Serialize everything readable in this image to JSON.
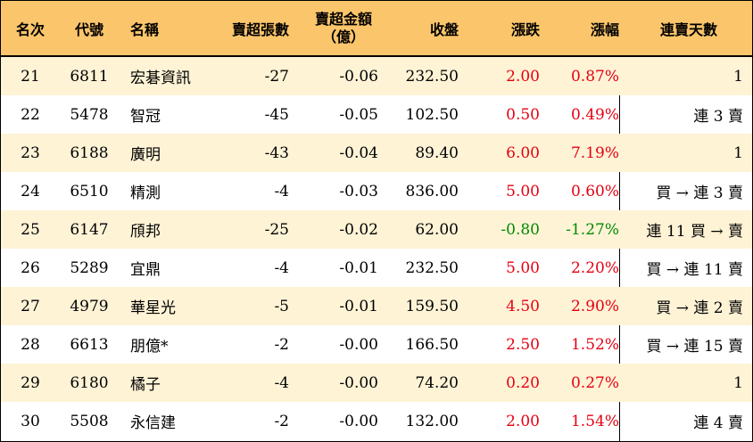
{
  "header": {
    "rank": "名次",
    "code": "代號",
    "name": "名稱",
    "net_sell_shares": "賣超張數",
    "net_sell_amount_line1": "賣超金額",
    "net_sell_amount_line2": "（億）",
    "close": "收盤",
    "change": "漲跌",
    "change_pct": "漲幅",
    "consecutive_days": "連賣天數"
  },
  "colors": {
    "header_bg": "#fbc56b",
    "stripe_bg": "#fff3d6",
    "up": "#e60012",
    "down": "#008a00"
  },
  "rows": [
    {
      "rank": "21",
      "code": "6811",
      "name": "宏碁資訊",
      "shares": "-27",
      "amount": "-0.06",
      "close": "232.50",
      "change": "2.00",
      "pct": "0.87%",
      "days": "1",
      "dir": "up"
    },
    {
      "rank": "22",
      "code": "5478",
      "name": "智冠",
      "shares": "-45",
      "amount": "-0.05",
      "close": "102.50",
      "change": "0.50",
      "pct": "0.49%",
      "days": "連 3 賣",
      "dir": "up"
    },
    {
      "rank": "23",
      "code": "6188",
      "name": "廣明",
      "shares": "-43",
      "amount": "-0.04",
      "close": "89.40",
      "change": "6.00",
      "pct": "7.19%",
      "days": "1",
      "dir": "up"
    },
    {
      "rank": "24",
      "code": "6510",
      "name": "精測",
      "shares": "-4",
      "amount": "-0.03",
      "close": "836.00",
      "change": "5.00",
      "pct": "0.60%",
      "days": "買 → 連 3 賣",
      "dir": "up"
    },
    {
      "rank": "25",
      "code": "6147",
      "name": "頎邦",
      "shares": "-25",
      "amount": "-0.02",
      "close": "62.00",
      "change": "-0.80",
      "pct": "-1.27%",
      "days": "連 11 買 → 賣",
      "dir": "down"
    },
    {
      "rank": "26",
      "code": "5289",
      "name": "宜鼎",
      "shares": "-4",
      "amount": "-0.01",
      "close": "232.50",
      "change": "5.00",
      "pct": "2.20%",
      "days": "買 → 連 11 賣",
      "dir": "up"
    },
    {
      "rank": "27",
      "code": "4979",
      "name": "華星光",
      "shares": "-5",
      "amount": "-0.01",
      "close": "159.50",
      "change": "4.50",
      "pct": "2.90%",
      "days": "買 → 連 2 賣",
      "dir": "up"
    },
    {
      "rank": "28",
      "code": "6613",
      "name": "朋億*",
      "shares": "-2",
      "amount": "-0.00",
      "close": "166.50",
      "change": "2.50",
      "pct": "1.52%",
      "days": "買 → 連 15 賣",
      "dir": "up"
    },
    {
      "rank": "29",
      "code": "6180",
      "name": "橘子",
      "shares": "-4",
      "amount": "-0.00",
      "close": "74.20",
      "change": "0.20",
      "pct": "0.27%",
      "days": "1",
      "dir": "up"
    },
    {
      "rank": "30",
      "code": "5508",
      "name": "永信建",
      "shares": "-2",
      "amount": "-0.00",
      "close": "132.00",
      "change": "2.00",
      "pct": "1.54%",
      "days": "連 4 賣",
      "dir": "up"
    }
  ]
}
